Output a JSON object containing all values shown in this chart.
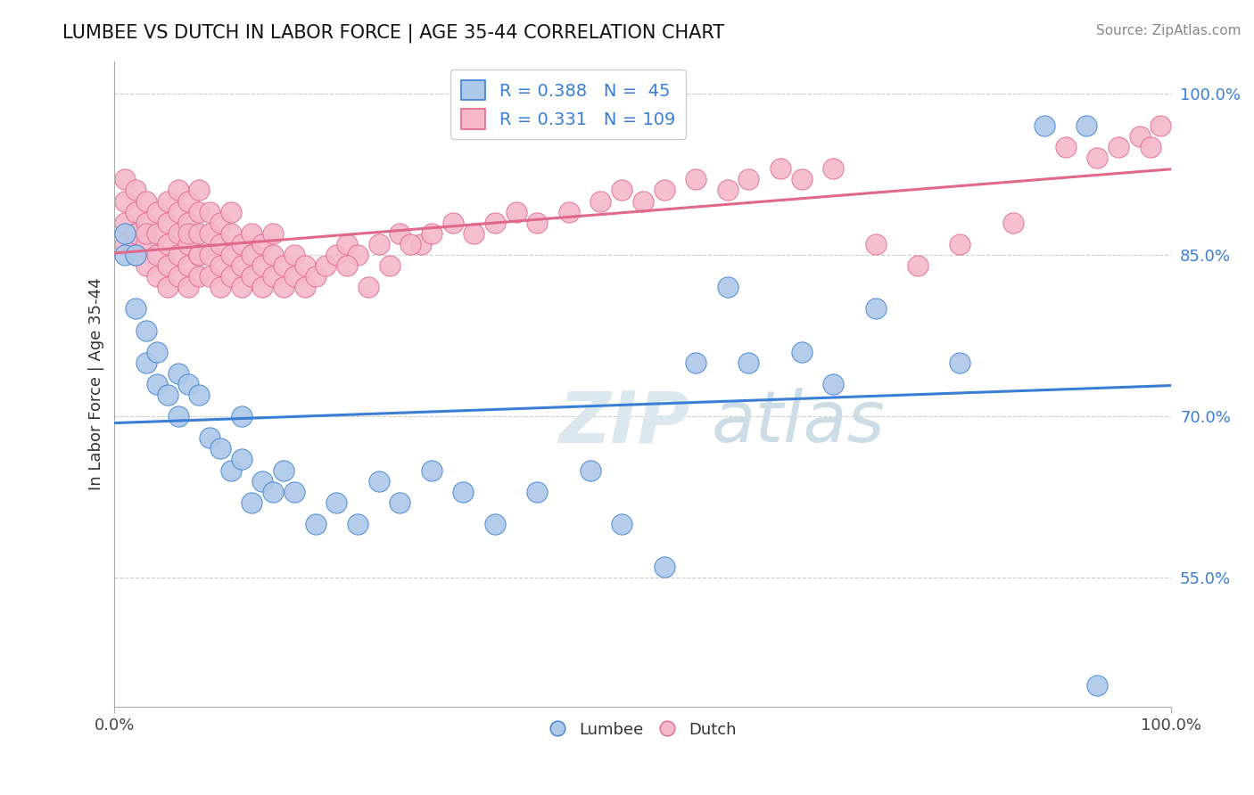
{
  "title": "LUMBEE VS DUTCH IN LABOR FORCE | AGE 35-44 CORRELATION CHART",
  "source_text": "Source: ZipAtlas.com",
  "ylabel": "In Labor Force | Age 35-44",
  "xlim": [
    0.0,
    1.0
  ],
  "ylim": [
    0.43,
    1.03
  ],
  "x_ticks": [
    0.0,
    1.0
  ],
  "x_tick_labels": [
    "0.0%",
    "100.0%"
  ],
  "y_ticks": [
    0.55,
    0.7,
    0.85,
    1.0
  ],
  "y_tick_labels": [
    "55.0%",
    "70.0%",
    "85.0%",
    "100.0%"
  ],
  "lumbee_R": 0.388,
  "lumbee_N": 45,
  "dutch_R": 0.331,
  "dutch_N": 109,
  "lumbee_color": "#adc8e8",
  "dutch_color": "#f5b8cb",
  "lumbee_line_color": "#3a7fd5",
  "dutch_line_color": "#e06888",
  "lumbee_x": [
    0.01,
    0.01,
    0.02,
    0.02,
    0.03,
    0.03,
    0.04,
    0.04,
    0.05,
    0.06,
    0.06,
    0.07,
    0.08,
    0.09,
    0.1,
    0.11,
    0.12,
    0.12,
    0.13,
    0.14,
    0.15,
    0.16,
    0.17,
    0.19,
    0.21,
    0.23,
    0.25,
    0.27,
    0.3,
    0.33,
    0.36,
    0.4,
    0.45,
    0.48,
    0.52,
    0.55,
    0.58,
    0.6,
    0.65,
    0.68,
    0.72,
    0.8,
    0.88,
    0.92,
    0.93
  ],
  "lumbee_y": [
    0.85,
    0.87,
    0.85,
    0.8,
    0.75,
    0.78,
    0.73,
    0.76,
    0.72,
    0.74,
    0.7,
    0.73,
    0.72,
    0.68,
    0.67,
    0.65,
    0.66,
    0.7,
    0.62,
    0.64,
    0.63,
    0.65,
    0.63,
    0.6,
    0.62,
    0.6,
    0.64,
    0.62,
    0.65,
    0.63,
    0.6,
    0.63,
    0.65,
    0.6,
    0.56,
    0.75,
    0.82,
    0.75,
    0.76,
    0.73,
    0.8,
    0.75,
    0.97,
    0.97,
    0.45
  ],
  "dutch_x": [
    0.01,
    0.01,
    0.01,
    0.01,
    0.02,
    0.02,
    0.02,
    0.02,
    0.02,
    0.03,
    0.03,
    0.03,
    0.03,
    0.03,
    0.04,
    0.04,
    0.04,
    0.04,
    0.05,
    0.05,
    0.05,
    0.05,
    0.05,
    0.06,
    0.06,
    0.06,
    0.06,
    0.06,
    0.07,
    0.07,
    0.07,
    0.07,
    0.07,
    0.07,
    0.08,
    0.08,
    0.08,
    0.08,
    0.08,
    0.08,
    0.09,
    0.09,
    0.09,
    0.09,
    0.1,
    0.1,
    0.1,
    0.1,
    0.11,
    0.11,
    0.11,
    0.11,
    0.12,
    0.12,
    0.12,
    0.13,
    0.13,
    0.13,
    0.14,
    0.14,
    0.14,
    0.15,
    0.15,
    0.15,
    0.16,
    0.16,
    0.17,
    0.17,
    0.18,
    0.18,
    0.19,
    0.2,
    0.21,
    0.22,
    0.23,
    0.25,
    0.27,
    0.29,
    0.3,
    0.32,
    0.34,
    0.36,
    0.38,
    0.4,
    0.43,
    0.46,
    0.48,
    0.5,
    0.52,
    0.55,
    0.58,
    0.6,
    0.63,
    0.65,
    0.68,
    0.72,
    0.76,
    0.8,
    0.85,
    0.9,
    0.93,
    0.95,
    0.97,
    0.98,
    0.99,
    0.22,
    0.24,
    0.26,
    0.28
  ],
  "dutch_y": [
    0.88,
    0.9,
    0.86,
    0.92,
    0.87,
    0.89,
    0.85,
    0.91,
    0.87,
    0.86,
    0.88,
    0.84,
    0.9,
    0.87,
    0.85,
    0.87,
    0.83,
    0.89,
    0.84,
    0.86,
    0.88,
    0.82,
    0.9,
    0.83,
    0.85,
    0.87,
    0.89,
    0.91,
    0.84,
    0.86,
    0.88,
    0.82,
    0.9,
    0.87,
    0.83,
    0.85,
    0.87,
    0.89,
    0.85,
    0.91,
    0.83,
    0.85,
    0.87,
    0.89,
    0.82,
    0.84,
    0.86,
    0.88,
    0.83,
    0.85,
    0.87,
    0.89,
    0.82,
    0.84,
    0.86,
    0.83,
    0.85,
    0.87,
    0.82,
    0.84,
    0.86,
    0.83,
    0.85,
    0.87,
    0.82,
    0.84,
    0.83,
    0.85,
    0.82,
    0.84,
    0.83,
    0.84,
    0.85,
    0.86,
    0.85,
    0.86,
    0.87,
    0.86,
    0.87,
    0.88,
    0.87,
    0.88,
    0.89,
    0.88,
    0.89,
    0.9,
    0.91,
    0.9,
    0.91,
    0.92,
    0.91,
    0.92,
    0.93,
    0.92,
    0.93,
    0.86,
    0.84,
    0.86,
    0.88,
    0.95,
    0.94,
    0.95,
    0.96,
    0.95,
    0.97,
    0.84,
    0.82,
    0.84,
    0.86
  ]
}
